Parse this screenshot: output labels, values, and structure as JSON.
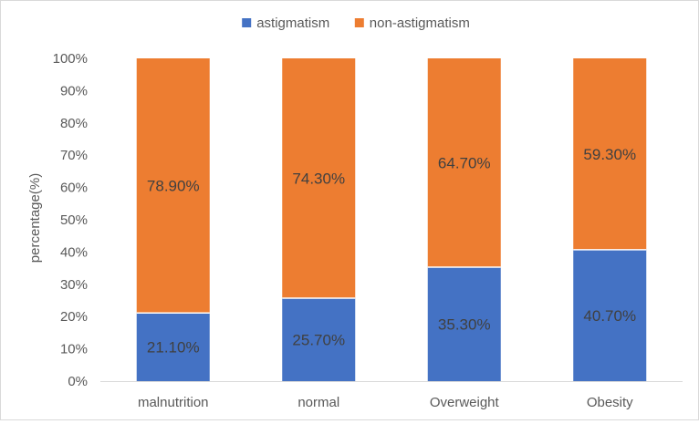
{
  "chart_data": {
    "type": "bar",
    "stacked": true,
    "title": "",
    "xlabel": "",
    "ylabel": "percentage(%)",
    "ylim": [
      0,
      100
    ],
    "yticks": [
      "0%",
      "10%",
      "20%",
      "30%",
      "40%",
      "50%",
      "60%",
      "70%",
      "80%",
      "90%",
      "100%"
    ],
    "grid": false,
    "legend_position": "top",
    "categories": [
      "malnutrition",
      "normal",
      "Overweight",
      "Obesity"
    ],
    "series": [
      {
        "name": "astigmatism",
        "color": "#4472c4",
        "values": [
          21.1,
          25.7,
          35.3,
          40.7
        ],
        "labels": [
          "21.10%",
          "25.70%",
          "35.30%",
          "40.70%"
        ]
      },
      {
        "name": "non-astigmatism",
        "color": "#ed7d31",
        "values": [
          78.9,
          74.3,
          64.7,
          59.3
        ],
        "labels": [
          "78.90%",
          "74.30%",
          "64.70%",
          "59.30%"
        ]
      }
    ]
  }
}
